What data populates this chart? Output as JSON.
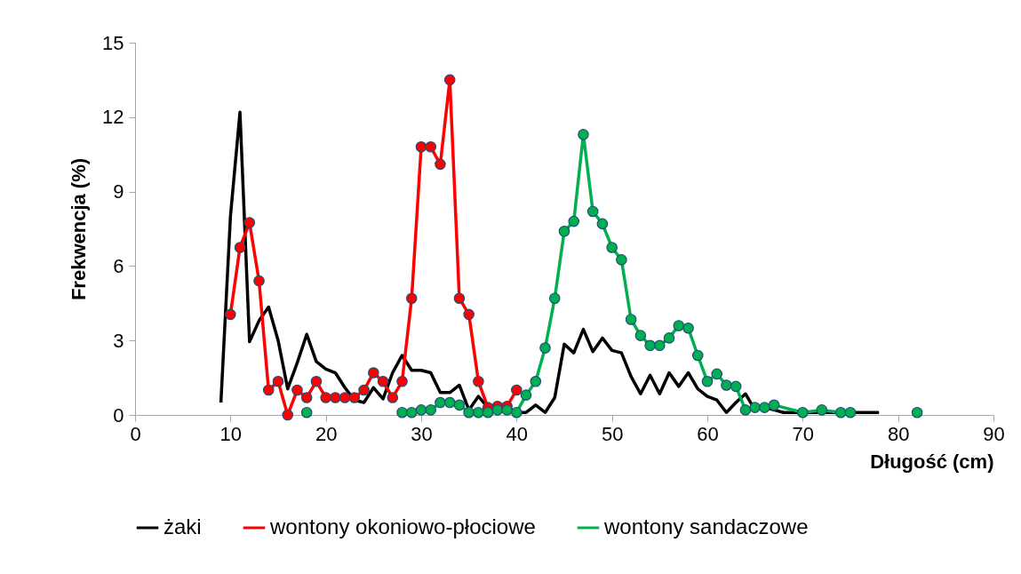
{
  "chart_data": {
    "type": "line",
    "xlabel": "Długość (cm)",
    "ylabel": "Frekwencja (%)",
    "xlim": [
      0,
      90
    ],
    "xticks": [
      0,
      10,
      20,
      30,
      40,
      50,
      60,
      70,
      80,
      90
    ],
    "ylim": [
      0,
      15
    ],
    "yticks": [
      0,
      3,
      6,
      9,
      12,
      15
    ],
    "grid": false,
    "legend": "bottom",
    "series": [
      {
        "name": "żaki",
        "color": "#000000",
        "marker": "none",
        "x": [
          9,
          10,
          11,
          12,
          13,
          14,
          15,
          16,
          17,
          18,
          19,
          20,
          21,
          22,
          23,
          24,
          25,
          26,
          27,
          28,
          29,
          30,
          31,
          32,
          33,
          34,
          35,
          36,
          37,
          38,
          39,
          40,
          41,
          42,
          43,
          44,
          45,
          46,
          47,
          48,
          49,
          50,
          51,
          52,
          53,
          54,
          55,
          56,
          57,
          58,
          59,
          60,
          61,
          62,
          63,
          64,
          65,
          66,
          67,
          68,
          69,
          70,
          71,
          72,
          73,
          74,
          75,
          76,
          77,
          78
        ],
        "values": [
          0.5,
          8.0,
          12.2,
          2.95,
          3.8,
          4.35,
          3.0,
          1.05,
          2.1,
          3.25,
          2.15,
          1.85,
          1.7,
          1.1,
          0.6,
          0.5,
          1.1,
          0.65,
          1.7,
          2.4,
          1.8,
          1.8,
          1.7,
          0.9,
          0.9,
          1.2,
          0.2,
          0.75,
          0.3,
          0.3,
          0.3,
          0.1,
          0.1,
          0.4,
          0.1,
          0.7,
          2.85,
          2.5,
          3.45,
          2.55,
          3.1,
          2.6,
          2.5,
          1.55,
          0.85,
          1.6,
          0.85,
          1.7,
          1.15,
          1.7,
          1.05,
          0.75,
          0.6,
          0.1,
          0.5,
          0.85,
          0.2,
          0.3,
          0.2,
          0.1,
          0.1,
          0.1,
          0.1,
          0.1,
          0.1,
          0.1,
          0.1,
          0.1,
          0.1,
          0.1
        ]
      },
      {
        "name": "wontony okoniowo-płociowe",
        "color": "#ff0000",
        "marker": "circle",
        "x": [
          10,
          11,
          12,
          13,
          14,
          15,
          16,
          17,
          18,
          19,
          20,
          21,
          22,
          23,
          24,
          25,
          26,
          27,
          28,
          29,
          30,
          31,
          32,
          33,
          34,
          35,
          36,
          37,
          38,
          39,
          40
        ],
        "values": [
          4.05,
          6.75,
          7.75,
          5.4,
          1.0,
          1.35,
          0,
          1.0,
          0.7,
          1.35,
          0.7,
          0.7,
          0.7,
          0.7,
          1.0,
          1.7,
          1.35,
          0.7,
          1.35,
          4.7,
          10.8,
          10.8,
          10.1,
          13.5,
          4.7,
          4.05,
          1.35,
          0.3,
          0.35,
          0.35,
          1.0
        ]
      },
      {
        "name": "wontony sandaczowe",
        "color": "#00b050",
        "marker": "circle",
        "x": [
          18,
          19,
          28,
          29,
          30,
          31,
          32,
          33,
          34,
          35,
          36,
          37,
          38,
          39,
          40,
          41,
          42,
          43,
          44,
          45,
          46,
          47,
          48,
          49,
          50,
          51,
          52,
          53,
          54,
          55,
          56,
          57,
          58,
          59,
          60,
          61,
          62,
          63,
          64,
          65,
          66,
          67,
          70,
          72,
          74,
          75,
          76,
          82
        ],
        "values": [
          0.1,
          null,
          0.1,
          0.1,
          0.2,
          0.2,
          0.5,
          0.5,
          0.4,
          0.1,
          0.1,
          0.1,
          0.2,
          0.2,
          0.1,
          0.8,
          1.35,
          2.7,
          4.7,
          7.4,
          7.8,
          11.3,
          8.2,
          7.7,
          6.75,
          6.25,
          3.85,
          3.2,
          2.8,
          2.8,
          3.1,
          3.6,
          3.5,
          2.4,
          1.35,
          1.65,
          1.2,
          1.15,
          0.2,
          0.3,
          0.3,
          0.4,
          0.1,
          0.2,
          0.1,
          0.1,
          null,
          0.1
        ]
      }
    ]
  }
}
